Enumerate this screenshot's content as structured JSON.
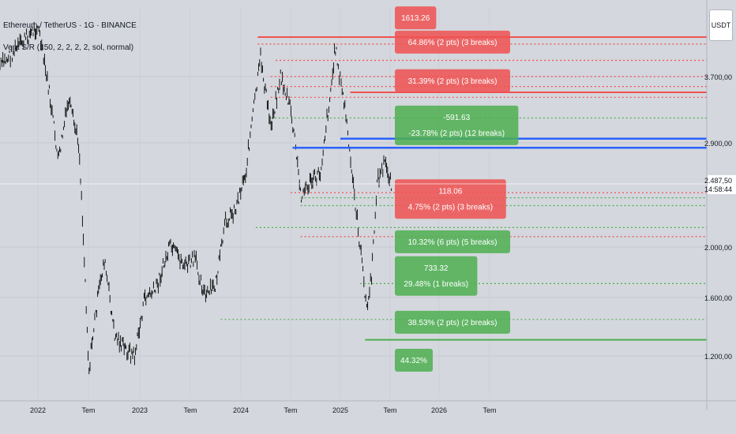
{
  "header": {
    "symbol_line": "Ethereum / TetherUS · 1G · BINANCE",
    "indicator_line": "Vera S/R (150, 2, 2, 2, 2, sol, normal)"
  },
  "currency_badge": "USDT",
  "colors": {
    "background": "#d4d7dd",
    "grid": "#c6c9cf",
    "candles": "#000000",
    "resistance": "#f05151",
    "support": "#4caf50",
    "pivot": "#2962ff",
    "label_text": "#ffffff",
    "axis_text": "#131722"
  },
  "chart_data": {
    "type": "line",
    "title": "Ethereum / TetherUS · 1G · BINANCE",
    "x_ticks": [
      "2022",
      "Tem",
      "2023",
      "Tem",
      "2024",
      "Tem",
      "2025",
      "Tem",
      "2026",
      "Tem"
    ],
    "y_ticks": [
      "3.700,00",
      "2.900,00",
      "2.000,00",
      "1.600,00",
      "1.200,00"
    ],
    "current_price": "2.487,50",
    "countdown": "14:58:44",
    "price_series": {
      "name": "ETHUSDT",
      "points": [
        [
          2021.9,
          3800
        ],
        [
          2022.0,
          4200
        ],
        [
          2022.1,
          3600
        ],
        [
          2022.2,
          2700
        ],
        [
          2022.3,
          3400
        ],
        [
          2022.4,
          2900
        ],
        [
          2022.45,
          2000
        ],
        [
          2022.5,
          1100
        ],
        [
          2022.55,
          1400
        ],
        [
          2022.65,
          1900
        ],
        [
          2022.75,
          1350
        ],
        [
          2022.85,
          1250
        ],
        [
          2022.95,
          1200
        ],
        [
          2023.05,
          1600
        ],
        [
          2023.15,
          1650
        ],
        [
          2023.3,
          2000
        ],
        [
          2023.45,
          1850
        ],
        [
          2023.55,
          1900
        ],
        [
          2023.65,
          1600
        ],
        [
          2023.75,
          1700
        ],
        [
          2023.85,
          2200
        ],
        [
          2023.95,
          2300
        ],
        [
          2024.05,
          2600
        ],
        [
          2024.15,
          3500
        ],
        [
          2024.2,
          3900
        ],
        [
          2024.3,
          3100
        ],
        [
          2024.4,
          3700
        ],
        [
          2024.5,
          3300
        ],
        [
          2024.6,
          2400
        ],
        [
          2024.7,
          2500
        ],
        [
          2024.8,
          2600
        ],
        [
          2024.9,
          3500
        ],
        [
          2024.95,
          4000
        ],
        [
          2025.05,
          3300
        ],
        [
          2025.1,
          2700
        ],
        [
          2025.2,
          2000
        ],
        [
          2025.27,
          1500
        ],
        [
          2025.32,
          1800
        ],
        [
          2025.37,
          2500
        ],
        [
          2025.45,
          2700
        ],
        [
          2025.52,
          2490
        ]
      ]
    },
    "levels": [
      {
        "kind": "resistance",
        "style": "solid",
        "value": 4090,
        "from": 2024.17
      },
      {
        "kind": "resistance",
        "style": "dotted",
        "value": 4020,
        "from": 2024.17
      },
      {
        "kind": "resistance",
        "style": "dotted",
        "value": 3860,
        "from": 2024.35
      },
      {
        "kind": "resistance",
        "style": "dotted",
        "value": 3700,
        "from": 2024.3
      },
      {
        "kind": "resistance",
        "style": "dotted",
        "value": 3580,
        "from": 2024.3
      },
      {
        "kind": "resistance",
        "style": "solid",
        "value": 3510,
        "from": 2025.1
      },
      {
        "kind": "resistance",
        "style": "dotted",
        "value": 3450,
        "from": 2024.3
      },
      {
        "kind": "support",
        "style": "dotted",
        "value": 3200,
        "from": 2024.3
      },
      {
        "kind": "pivot",
        "style": "solid",
        "value": 2950,
        "from": 2025.0
      },
      {
        "kind": "pivot",
        "style": "solid",
        "value": 2850,
        "from": 2024.52
      },
      {
        "kind": "resistance",
        "style": "dotted",
        "value": 2420,
        "from": 2024.5
      },
      {
        "kind": "support",
        "style": "dotted",
        "value": 2380,
        "from": 2024.6
      },
      {
        "kind": "support",
        "style": "dotted",
        "value": 2320,
        "from": 2024.6
      },
      {
        "kind": "support",
        "style": "dotted",
        "value": 2150,
        "from": 2024.15
      },
      {
        "kind": "resistance",
        "style": "dotted",
        "value": 2080,
        "from": 2024.6
      },
      {
        "kind": "support",
        "style": "dotted",
        "value": 1710,
        "from": 2025.2
      },
      {
        "kind": "support",
        "style": "dotted",
        "value": 1450,
        "from": 2023.8
      },
      {
        "kind": "support",
        "style": "solid",
        "value": 1310,
        "from": 2025.25
      }
    ],
    "annotations": [
      {
        "kind": "resistance",
        "lines": [
          "1613.26"
        ],
        "at": 4280
      },
      {
        "kind": "resistance",
        "lines": [
          "64.86% (2 pts) (3 breaks)"
        ],
        "at": 4040
      },
      {
        "kind": "resistance",
        "lines": [
          "31.39% (2 pts) (3 breaks)"
        ],
        "at": 3650
      },
      {
        "kind": "support",
        "lines": [
          "-591.63",
          "-23.78% (2 pts) (12 breaks)"
        ],
        "at": 3110
      },
      {
        "kind": "resistance",
        "lines": [
          "118.06",
          "4.75% (2 pts) (3 breaks)"
        ],
        "at": 2370
      },
      {
        "kind": "support",
        "lines": [
          "10.32% (6 pts) (5 breaks)"
        ],
        "at": 2040
      },
      {
        "kind": "support",
        "lines": [
          "733.32",
          "29.48% (1 breaks)"
        ],
        "at": 1770
      },
      {
        "kind": "support",
        "lines": [
          "38.53% (2 pts) (2 breaks)"
        ],
        "at": 1430
      },
      {
        "kind": "support",
        "lines": [
          "44.32%"
        ],
        "at": 1175
      }
    ]
  }
}
